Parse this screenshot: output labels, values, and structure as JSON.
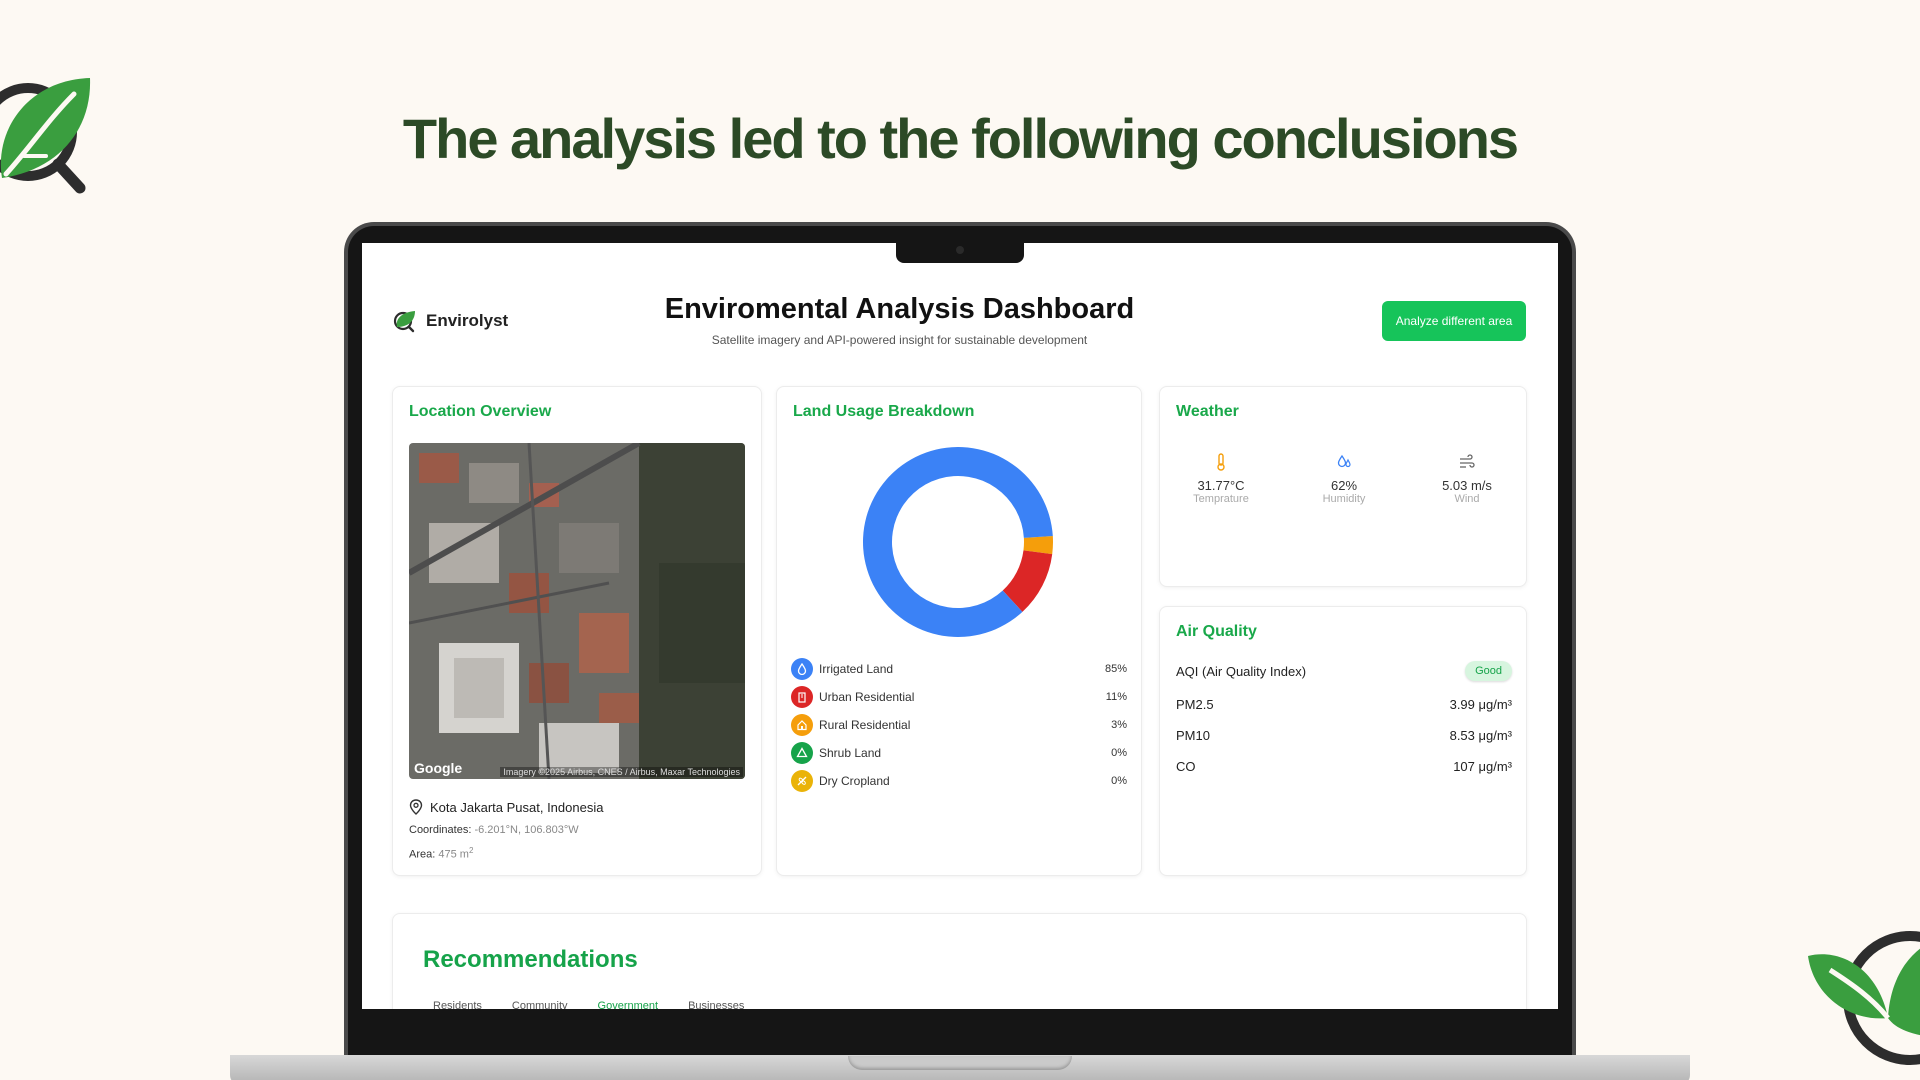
{
  "page": {
    "headline": "The analysis led to the following conclusions"
  },
  "brand": {
    "name": "Envirolyst"
  },
  "header": {
    "title": "Enviromental Analysis Dashboard",
    "subtitle": "Satellite imagery and API-powered insight for sustainable development",
    "analyze_button": "Analyze different area"
  },
  "location": {
    "title": "Location Overview",
    "map_brand": "Google",
    "imagery_credit": "Imagery ©2025 Airbus, CNES / Airbus, Maxar Technologies",
    "place": "Kota Jakarta Pusat, Indonesia",
    "coords_label": "Coordinates:",
    "coords_value": "-6.201°N, 106.803°W",
    "area_label": "Area:",
    "area_value": "475 m",
    "area_unit_sup": "2"
  },
  "land": {
    "title": "Land Usage Breakdown",
    "items": [
      {
        "label": "Irrigated Land",
        "pct": "85%",
        "value": 85,
        "color": "#3b82f6"
      },
      {
        "label": "Urban Residential",
        "pct": "11%",
        "value": 11,
        "color": "#dc2626"
      },
      {
        "label": "Rural Residential",
        "pct": "3%",
        "value": 3,
        "color": "#f59e0b"
      },
      {
        "label": "Shrub Land",
        "pct": "0%",
        "value": 0,
        "color": "#16a34a"
      },
      {
        "label": "Dry Cropland",
        "pct": "0%",
        "value": 0,
        "color": "#eab308"
      }
    ]
  },
  "chart_data": {
    "type": "pie",
    "title": "Land Usage Breakdown",
    "categories": [
      "Irrigated Land",
      "Urban Residential",
      "Rural Residential",
      "Shrub Land",
      "Dry Cropland"
    ],
    "values": [
      85,
      11,
      3,
      0,
      0
    ],
    "colors": [
      "#3b82f6",
      "#dc2626",
      "#f59e0b",
      "#16a34a",
      "#eab308"
    ]
  },
  "weather": {
    "title": "Weather",
    "temperature": {
      "value": "31.77°C",
      "label": "Temprature"
    },
    "humidity": {
      "value": "62%",
      "label": "Humidity"
    },
    "wind": {
      "value": "5.03 m/s",
      "label": "Wind"
    }
  },
  "air": {
    "title": "Air Quality",
    "aqi_label": "AQI (Air Quality Index)",
    "aqi_status": "Good",
    "rows": [
      {
        "name": "PM2.5",
        "value": "3.99 μg/m³"
      },
      {
        "name": "PM10",
        "value": "8.53 μg/m³"
      },
      {
        "name": "CO",
        "value": "107 μg/m³"
      }
    ]
  },
  "recommendations": {
    "title": "Recommendations",
    "tabs": [
      "Residents",
      "Community",
      "Government",
      "Businesses"
    ]
  },
  "colors": {
    "accent": "#16c45a",
    "headline": "#2c4a26",
    "card_title": "#19a84a"
  }
}
